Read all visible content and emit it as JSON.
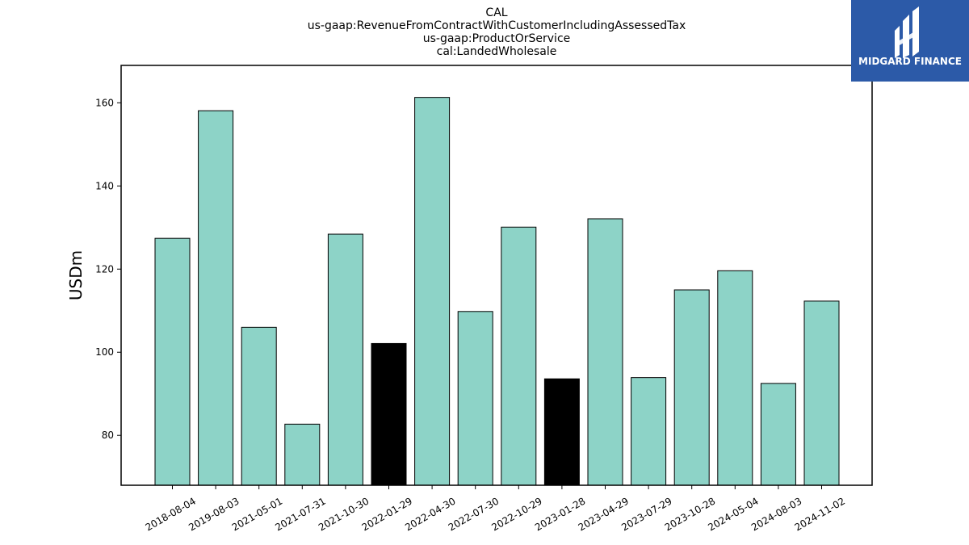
{
  "logo": {
    "text": "MIDGARD FINANCE",
    "background": "#2c5aa8"
  },
  "chart_data": {
    "type": "bar",
    "title_lines": [
      "CAL",
      "us-gaap:RevenueFromContractWithCustomerIncludingAssessedTax",
      "us-gaap:ProductOrService",
      "cal:LandedWholesale"
    ],
    "xlabel": "",
    "ylabel": "USDm",
    "ylim": [
      68,
      169
    ],
    "yticks": [
      80,
      100,
      120,
      140,
      160
    ],
    "grid": false,
    "categories": [
      "2018-08-04",
      "2019-08-03",
      "2021-05-01",
      "2021-07-31",
      "2021-10-30",
      "2022-01-29",
      "2022-04-30",
      "2022-07-30",
      "2022-10-29",
      "2023-01-28",
      "2023-04-29",
      "2023-07-29",
      "2023-10-28",
      "2024-05-04",
      "2024-08-03",
      "2024-11-02"
    ],
    "values": [
      127.4,
      158.1,
      106.0,
      82.7,
      128.4,
      102.1,
      161.3,
      109.8,
      130.1,
      93.6,
      132.1,
      93.9,
      115.0,
      119.6,
      92.5,
      112.3
    ],
    "highlighted": [
      "2022-01-29",
      "2023-01-28"
    ],
    "colors": {
      "bar": "#8dd3c7",
      "highlight": "#000000",
      "edge": "#000000"
    }
  }
}
